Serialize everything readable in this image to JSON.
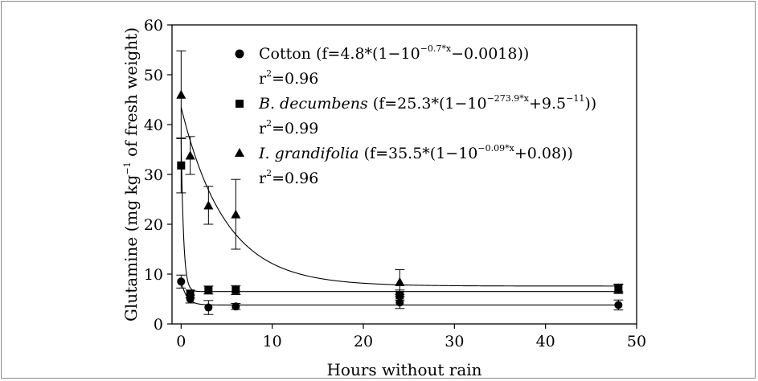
{
  "chart_data": {
    "type": "scatter",
    "xlabel": "Hours without rain",
    "ylabel_main": "Glutamine (mg kg",
    "ylabel_sup": "−1",
    "ylabel_tail": " of fresh weight)",
    "xlim": [
      -1,
      50
    ],
    "ylim": [
      0,
      60
    ],
    "xticks": [
      0,
      10,
      20,
      30,
      40,
      50
    ],
    "yticks": [
      0,
      10,
      20,
      30,
      40,
      50,
      60
    ],
    "grid": false,
    "legend_position": "top-right",
    "series": [
      {
        "name": "Cotton",
        "italic": false,
        "marker": "circle",
        "equation_prefix": " (f=4.8*(1−10",
        "equation_exp": "−0.7*x",
        "equation_suffix": "−0.0018))",
        "r2_prefix": "r",
        "r2_sup": "2",
        "r2_value": "=0.96",
        "fit": {
          "A": 4.8,
          "k": 0.7,
          "c": -0.0018
        },
        "x": [
          0,
          1,
          3,
          6,
          24,
          48
        ],
        "y": [
          8.5,
          5.0,
          3.3,
          3.5,
          4.3,
          3.8
        ],
        "err": [
          1.3,
          0.8,
          1.4,
          0.6,
          1.2,
          1.0
        ]
      },
      {
        "name": "B. decumbens",
        "italic": true,
        "marker": "square",
        "equation_prefix": " (f=25.3*(1−10",
        "equation_exp": "−273.9*x",
        "equation_suffix": "+9.5",
        "equation_exp2": "−11",
        "equation_end": "))",
        "r2_prefix": "r",
        "r2_sup": "2",
        "r2_value": "=0.99",
        "fit": {
          "A": 25.3,
          "k": 273.9,
          "c": 0
        },
        "x": [
          0,
          1,
          3,
          6,
          24,
          48
        ],
        "y": [
          31.8,
          6.0,
          6.8,
          6.8,
          5.8,
          7.0
        ],
        "err": [
          5.5,
          0.8,
          0.8,
          0.9,
          1.0,
          0.9
        ]
      },
      {
        "name": "I. grandifolia",
        "italic": true,
        "marker": "triangle",
        "equation_prefix": " (f=35.5*(1−10",
        "equation_exp": "−0.09*x",
        "equation_suffix": "+0.08))",
        "r2_prefix": "r",
        "r2_sup": "2",
        "r2_value": "=0.96",
        "fit": {
          "A": 35.5,
          "k": 0.09,
          "c": 0.08
        },
        "x": [
          0,
          1,
          3,
          6,
          24,
          48
        ],
        "y": [
          46.0,
          33.8,
          23.8,
          22.0,
          8.4,
          7.2
        ],
        "err": [
          8.8,
          3.8,
          3.8,
          7.0,
          2.5,
          0.8
        ]
      }
    ]
  }
}
